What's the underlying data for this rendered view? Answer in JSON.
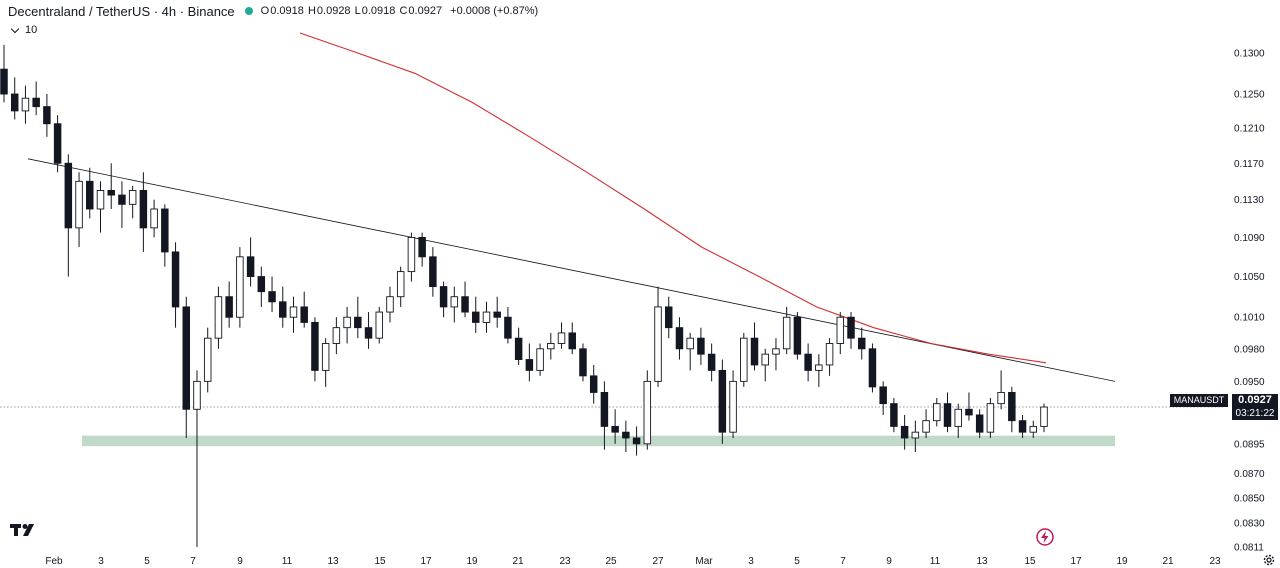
{
  "header": {
    "title": "Decentraland / TetherUS · 4h · Binance",
    "open_label": "O",
    "open": "0.0918",
    "high_label": "H",
    "high": "0.0928",
    "low_label": "L",
    "low": "0.0918",
    "close_label": "C",
    "close": "0.0927",
    "change": "+0.0008 (+0.87%)",
    "status_color": "#22ab94"
  },
  "indicators_toggle": {
    "count": "10"
  },
  "price_label": {
    "symbol": "MANAUSDT",
    "price": "0.0927",
    "countdown": "03:21:22"
  },
  "icons": {
    "logo": "tradingview-logo-icon",
    "flash": "lightning-icon",
    "settings": "gear-icon"
  },
  "chart_data": {
    "type": "candlestick",
    "x_ticks": [
      "Feb",
      "3",
      "5",
      "7",
      "9",
      "11",
      "13",
      "15",
      "17",
      "19",
      "21",
      "23",
      "25",
      "27",
      "Mar",
      "3",
      "5",
      "7",
      "9",
      "11",
      "13",
      "15",
      "17",
      "19",
      "21",
      "23"
    ],
    "y_ticks": [
      "0.1300",
      "0.1250",
      "0.1210",
      "0.1170",
      "0.1130",
      "0.1090",
      "0.1050",
      "0.1010",
      "0.0980",
      "0.0950",
      "0.0927",
      "0.0895",
      "0.0870",
      "0.0850",
      "0.0830",
      "0.0811"
    ],
    "y_scale": "log",
    "ylim": [
      0.0811,
      0.1325
    ],
    "current_price": 0.0927,
    "candles_approx": [
      [
        0.128,
        0.131,
        0.124,
        0.125
      ],
      [
        0.125,
        0.127,
        0.122,
        0.123
      ],
      [
        0.123,
        0.126,
        0.1215,
        0.1245
      ],
      [
        0.1245,
        0.1265,
        0.1225,
        0.1235
      ],
      [
        0.1235,
        0.125,
        0.12,
        0.1215
      ],
      [
        0.1215,
        0.1225,
        0.116,
        0.117
      ],
      [
        0.117,
        0.118,
        0.105,
        0.11
      ],
      [
        0.11,
        0.116,
        0.108,
        0.115
      ],
      [
        0.115,
        0.1165,
        0.111,
        0.112
      ],
      [
        0.112,
        0.115,
        0.1095,
        0.114
      ],
      [
        0.114,
        0.117,
        0.112,
        0.1135
      ],
      [
        0.1135,
        0.115,
        0.11,
        0.1125
      ],
      [
        0.1125,
        0.1145,
        0.111,
        0.114
      ],
      [
        0.114,
        0.116,
        0.1075,
        0.11
      ],
      [
        0.11,
        0.113,
        0.109,
        0.112
      ],
      [
        0.112,
        0.1125,
        0.106,
        0.1075
      ],
      [
        0.1075,
        0.1085,
        0.1,
        0.102
      ],
      [
        0.102,
        0.103,
        0.09,
        0.0925
      ],
      [
        0.0925,
        0.096,
        0.0811,
        0.095
      ],
      [
        0.095,
        0.1,
        0.094,
        0.099
      ],
      [
        0.099,
        0.104,
        0.098,
        0.103
      ],
      [
        0.103,
        0.1045,
        0.1,
        0.101
      ],
      [
        0.101,
        0.108,
        0.1,
        0.107
      ],
      [
        0.107,
        0.109,
        0.104,
        0.105
      ],
      [
        0.105,
        0.106,
        0.102,
        0.1035
      ],
      [
        0.1035,
        0.105,
        0.1015,
        0.1025
      ],
      [
        0.1025,
        0.104,
        0.1,
        0.101
      ],
      [
        0.101,
        0.103,
        0.0995,
        0.102
      ],
      [
        0.102,
        0.1035,
        0.1,
        0.1005
      ],
      [
        0.1005,
        0.101,
        0.095,
        0.096
      ],
      [
        0.096,
        0.099,
        0.0945,
        0.0985
      ],
      [
        0.0985,
        0.101,
        0.0975,
        0.1
      ],
      [
        0.1,
        0.102,
        0.0985,
        0.101
      ],
      [
        0.101,
        0.103,
        0.099,
        0.1
      ],
      [
        0.1,
        0.1015,
        0.098,
        0.099
      ],
      [
        0.099,
        0.102,
        0.0985,
        0.1015
      ],
      [
        0.1015,
        0.104,
        0.1005,
        0.103
      ],
      [
        0.103,
        0.106,
        0.102,
        0.1055
      ],
      [
        0.1055,
        0.1095,
        0.1045,
        0.109
      ],
      [
        0.109,
        0.1095,
        0.106,
        0.107
      ],
      [
        0.107,
        0.108,
        0.103,
        0.104
      ],
      [
        0.104,
        0.1045,
        0.101,
        0.102
      ],
      [
        0.102,
        0.104,
        0.1005,
        0.103
      ],
      [
        0.103,
        0.1045,
        0.101,
        0.1015
      ],
      [
        0.1015,
        0.103,
        0.0995,
        0.1005
      ],
      [
        0.1005,
        0.1025,
        0.0995,
        0.1015
      ],
      [
        0.1015,
        0.103,
        0.1,
        0.101
      ],
      [
        0.101,
        0.102,
        0.0985,
        0.099
      ],
      [
        0.099,
        0.1,
        0.0965,
        0.097
      ],
      [
        0.097,
        0.0985,
        0.095,
        0.096
      ],
      [
        0.096,
        0.0985,
        0.0955,
        0.098
      ],
      [
        0.098,
        0.0995,
        0.097,
        0.0985
      ],
      [
        0.0985,
        0.1005,
        0.098,
        0.0995
      ],
      [
        0.0995,
        0.1005,
        0.0975,
        0.098
      ],
      [
        0.098,
        0.0985,
        0.095,
        0.0955
      ],
      [
        0.0955,
        0.0965,
        0.093,
        0.094
      ],
      [
        0.094,
        0.095,
        0.089,
        0.091
      ],
      [
        0.091,
        0.0925,
        0.0895,
        0.0905
      ],
      [
        0.0905,
        0.0915,
        0.0888,
        0.09
      ],
      [
        0.09,
        0.091,
        0.0885,
        0.0895
      ],
      [
        0.0895,
        0.096,
        0.089,
        0.095
      ],
      [
        0.095,
        0.104,
        0.0945,
        0.102
      ],
      [
        0.102,
        0.103,
        0.099,
        0.1
      ],
      [
        0.1,
        0.101,
        0.097,
        0.098
      ],
      [
        0.098,
        0.0995,
        0.096,
        0.099
      ],
      [
        0.099,
        0.1,
        0.0965,
        0.0975
      ],
      [
        0.0975,
        0.0985,
        0.095,
        0.096
      ],
      [
        0.096,
        0.097,
        0.0895,
        0.0905
      ],
      [
        0.0905,
        0.096,
        0.09,
        0.095
      ],
      [
        0.095,
        0.0995,
        0.0945,
        0.099
      ],
      [
        0.099,
        0.1005,
        0.096,
        0.0965
      ],
      [
        0.0965,
        0.098,
        0.095,
        0.0975
      ],
      [
        0.0975,
        0.099,
        0.096,
        0.098
      ],
      [
        0.098,
        0.102,
        0.0975,
        0.101
      ],
      [
        0.101,
        0.1015,
        0.097,
        0.0975
      ],
      [
        0.0975,
        0.0985,
        0.095,
        0.096
      ],
      [
        0.096,
        0.0975,
        0.0945,
        0.0965
      ],
      [
        0.0965,
        0.099,
        0.0955,
        0.0985
      ],
      [
        0.0985,
        0.1015,
        0.0975,
        0.101
      ],
      [
        0.101,
        0.1015,
        0.098,
        0.099
      ],
      [
        0.099,
        0.1,
        0.097,
        0.098
      ],
      [
        0.098,
        0.0985,
        0.094,
        0.0945
      ],
      [
        0.0945,
        0.095,
        0.092,
        0.093
      ],
      [
        0.093,
        0.0935,
        0.0905,
        0.091
      ],
      [
        0.091,
        0.092,
        0.089,
        0.09
      ],
      [
        0.09,
        0.0915,
        0.0888,
        0.0905
      ],
      [
        0.0905,
        0.0925,
        0.09,
        0.0915
      ],
      [
        0.0915,
        0.0935,
        0.091,
        0.093
      ],
      [
        0.093,
        0.094,
        0.0905,
        0.091
      ],
      [
        0.091,
        0.093,
        0.09,
        0.0925
      ],
      [
        0.0925,
        0.094,
        0.0915,
        0.092
      ],
      [
        0.092,
        0.0925,
        0.09,
        0.0905
      ],
      [
        0.0905,
        0.0935,
        0.09,
        0.093
      ],
      [
        0.093,
        0.096,
        0.0925,
        0.094
      ],
      [
        0.094,
        0.0945,
        0.0905,
        0.0915
      ],
      [
        0.0915,
        0.092,
        0.09,
        0.0905
      ],
      [
        0.0905,
        0.0915,
        0.09,
        0.091
      ],
      [
        0.091,
        0.093,
        0.0905,
        0.0927
      ]
    ],
    "moving_average": [
      [
        0.1325,
        0.1325
      ],
      [
        0.13,
        0.13
      ],
      [
        0.1275,
        0.127
      ],
      [
        0.124,
        0.123
      ],
      [
        0.12,
        0.1185
      ],
      [
        0.116,
        0.1145
      ],
      [
        0.112,
        0.11
      ],
      [
        0.108,
        0.106
      ],
      [
        0.105,
        0.1035
      ],
      [
        0.102,
        0.101
      ],
      [
        0.1,
        0.0995
      ],
      [
        0.0985,
        0.098
      ],
      [
        0.0975,
        0.097
      ],
      [
        0.0967,
        0.0965
      ]
    ],
    "trendline": {
      "from": 0.1175,
      "to": 0.095
    },
    "support_zone": [
      0.0893,
      0.0902
    ],
    "grid": false,
    "legend": "none"
  }
}
